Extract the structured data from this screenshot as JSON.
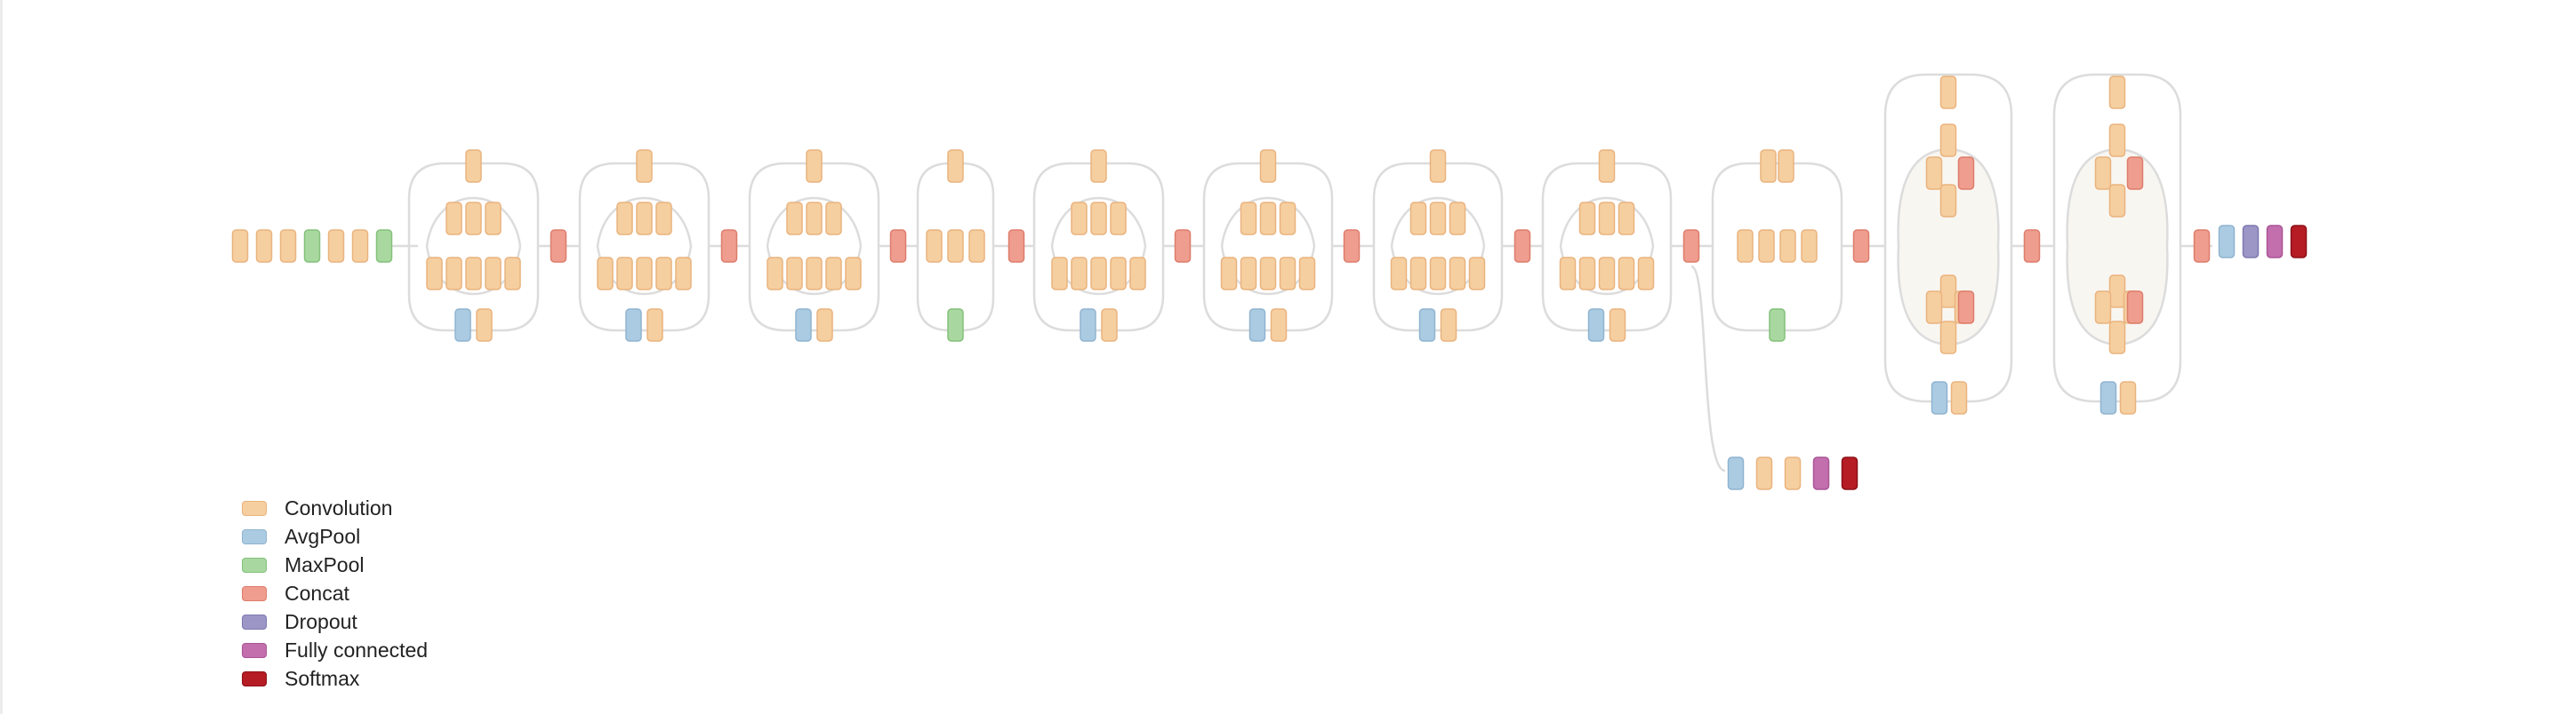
{
  "colors": {
    "background": "#ffffff",
    "conv": "#f6cfa0",
    "conv_border": "#e9b37e",
    "avgpool": "#abcbe2",
    "avgpool_border": "#8fb4d0",
    "maxpool": "#a8d8a0",
    "maxpool_border": "#84c17a",
    "concat": "#ef9d8e",
    "concat_border": "#de7d6c",
    "dropout": "#9b96c6",
    "dropout_border": "#7f79b0",
    "fc": "#c36fae",
    "fc_border": "#a95595",
    "softmax": "#b51c24",
    "softmax_border": "#8e1118",
    "edge": "#dcdcdc",
    "highlight": "#f8f6f1"
  },
  "diagram": {
    "stem": [
      "conv",
      "conv",
      "conv",
      "maxpool",
      "conv",
      "conv",
      "maxpool"
    ],
    "modules": [
      {
        "type": "A",
        "pool": "avgpool"
      },
      {
        "type": "A",
        "pool": "avgpool"
      },
      {
        "type": "A",
        "pool": "avgpool"
      },
      {
        "type": "B",
        "pool": "maxpool"
      },
      {
        "type": "A",
        "pool": "avgpool"
      },
      {
        "type": "A",
        "pool": "avgpool"
      },
      {
        "type": "A",
        "pool": "avgpool"
      },
      {
        "type": "A",
        "pool": "avgpool"
      },
      {
        "type": "D",
        "pool": "maxpool"
      },
      {
        "type": "E",
        "pool": "avgpool"
      },
      {
        "type": "E",
        "pool": "avgpool"
      }
    ],
    "head": [
      "avgpool",
      "dropout",
      "fc",
      "softmax"
    ],
    "aux_head": [
      "avgpool",
      "conv",
      "conv",
      "fc",
      "softmax"
    ]
  },
  "legend": [
    {
      "type": "conv",
      "label": "Convolution"
    },
    {
      "type": "avgpool",
      "label": "AvgPool"
    },
    {
      "type": "maxpool",
      "label": "MaxPool"
    },
    {
      "type": "concat",
      "label": "Concat"
    },
    {
      "type": "dropout",
      "label": "Dropout"
    },
    {
      "type": "fc",
      "label": "Fully connected"
    },
    {
      "type": "softmax",
      "label": "Softmax"
    }
  ]
}
